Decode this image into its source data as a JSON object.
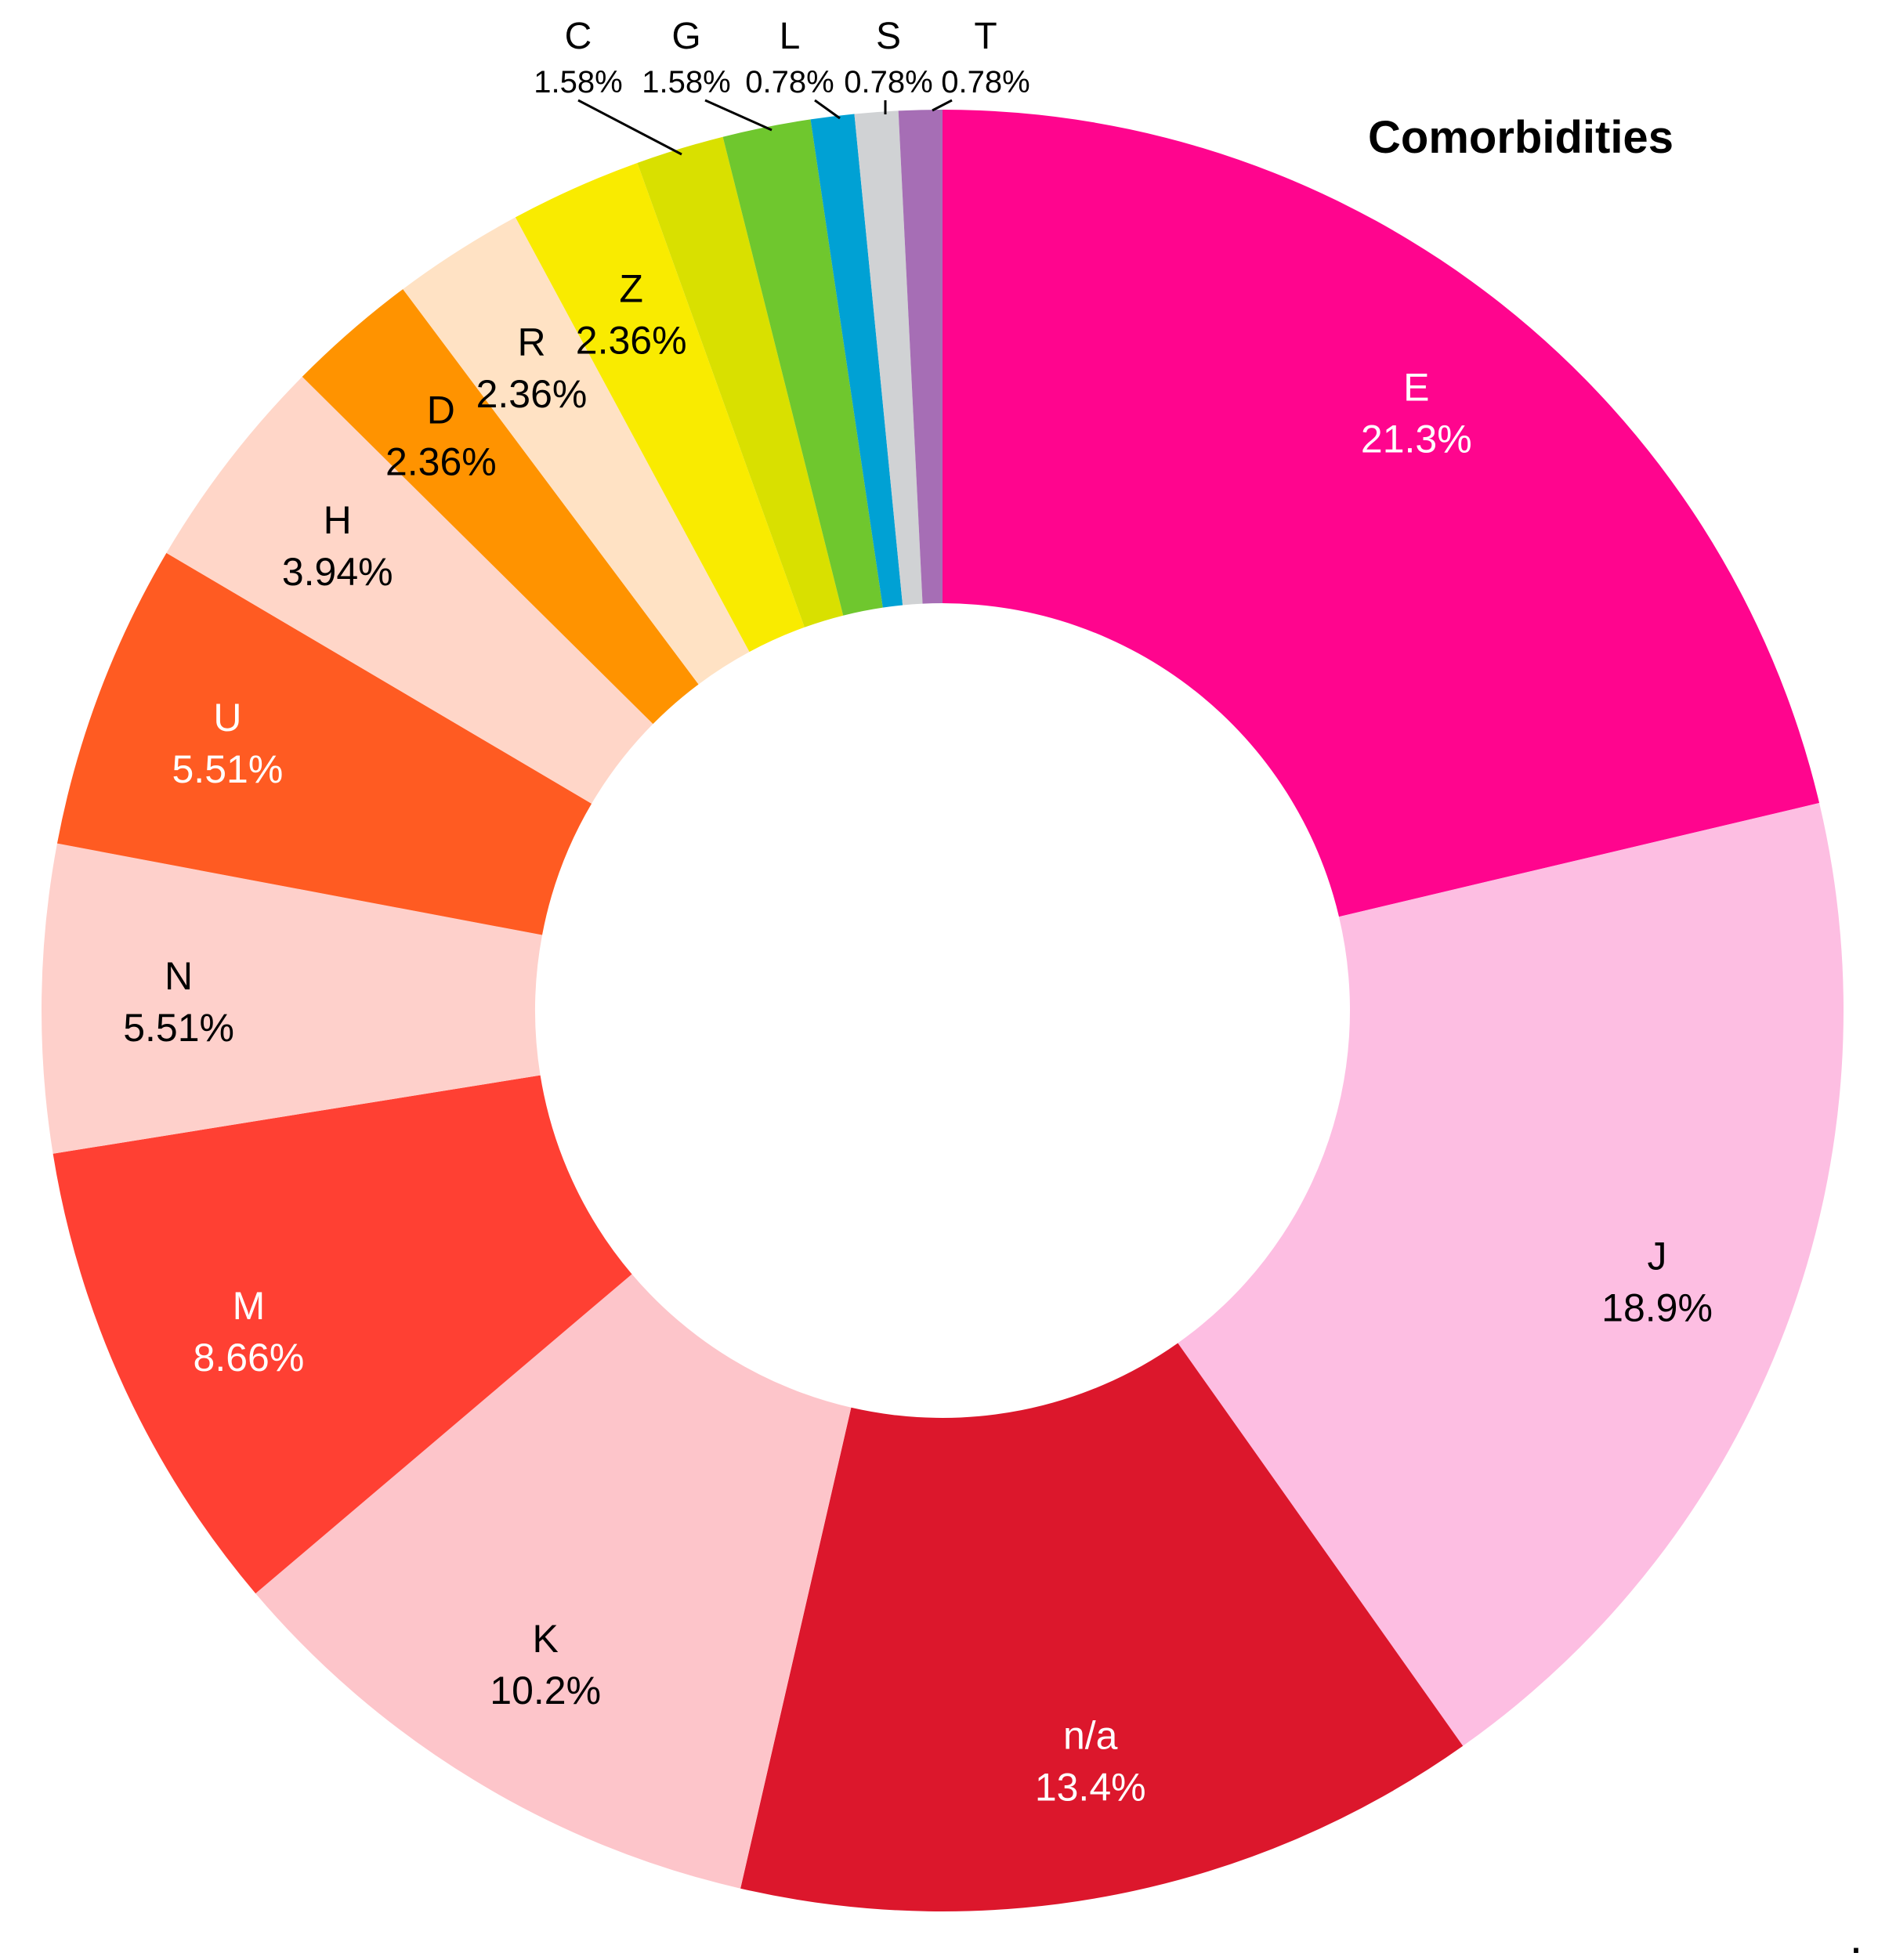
{
  "chart_data": {
    "type": "pie",
    "donut": true,
    "title": "Comorbidities",
    "start_angle_deg": 0,
    "direction": "clockwise",
    "slices": [
      {
        "label": "E",
        "percent_label": "21.3%",
        "value": 21.3,
        "color": "#FF058E",
        "label_color": "#FFFFFF",
        "label_placement": "inside"
      },
      {
        "label": "J",
        "percent_label": "18.9%",
        "value": 18.9,
        "color": "#FDBEE2",
        "label_color": "#000000",
        "label_placement": "inside"
      },
      {
        "label": "n/a",
        "percent_label": "13.4%",
        "value": 13.4,
        "color": "#DC172C",
        "label_color": "#FFFFFF",
        "label_placement": "inside"
      },
      {
        "label": "K",
        "percent_label": "10.2%",
        "value": 10.2,
        "color": "#FDC5CA",
        "label_color": "#000000",
        "label_placement": "inside"
      },
      {
        "label": "M",
        "percent_label": "8.66%",
        "value": 8.66,
        "color": "#FF4033",
        "label_color": "#FFFFFF",
        "label_placement": "inside"
      },
      {
        "label": "N",
        "percent_label": "5.51%",
        "value": 5.51,
        "color": "#FED0CB",
        "label_color": "#000000",
        "label_placement": "inside"
      },
      {
        "label": "U",
        "percent_label": "5.51%",
        "value": 5.51,
        "color": "#FF5B22",
        "label_color": "#FFFFFF",
        "label_placement": "inside"
      },
      {
        "label": "H",
        "percent_label": "3.94%",
        "value": 3.94,
        "color": "#FFD6C8",
        "label_color": "#000000",
        "label_placement": "inside"
      },
      {
        "label": "D",
        "percent_label": "2.36%",
        "value": 2.36,
        "color": "#FF9300",
        "label_color": "#000000",
        "label_placement": "inside"
      },
      {
        "label": "R",
        "percent_label": "2.36%",
        "value": 2.36,
        "color": "#FFE2C4",
        "label_color": "#000000",
        "label_placement": "inside"
      },
      {
        "label": "Z",
        "percent_label": "2.36%",
        "value": 2.36,
        "color": "#F9EB00",
        "label_color": "#000000",
        "label_placement": "inside"
      },
      {
        "label": "C",
        "percent_label": "1.58%",
        "value": 1.58,
        "color": "#D9E000",
        "label_color": "#000000",
        "label_placement": "outside"
      },
      {
        "label": "G",
        "percent_label": "1.58%",
        "value": 1.58,
        "color": "#6FC72E",
        "label_color": "#000000",
        "label_placement": "outside"
      },
      {
        "label": "L",
        "percent_label": "0.78%",
        "value": 0.78,
        "color": "#00A1D4",
        "label_color": "#000000",
        "label_placement": "outside"
      },
      {
        "label": "S",
        "percent_label": "0.78%",
        "value": 0.78,
        "color": "#D0D2D4",
        "label_color": "#000000",
        "label_placement": "outside"
      },
      {
        "label": "T",
        "percent_label": "0.78%",
        "value": 0.78,
        "color": "#A66EB5",
        "label_color": "#000000",
        "label_placement": "outside"
      }
    ],
    "legend": "none",
    "grid": false
  },
  "footnote_mark": "."
}
